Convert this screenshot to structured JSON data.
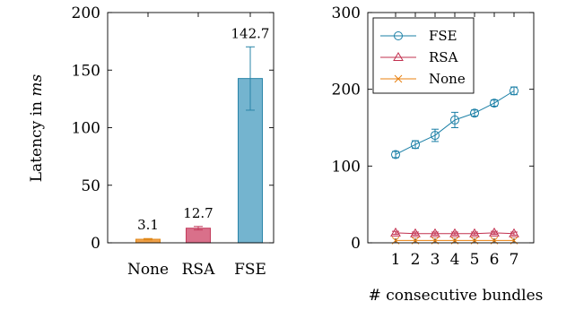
{
  "chart_data": [
    {
      "type": "bar",
      "categories": [
        "None",
        "RSA",
        "FSE"
      ],
      "values": [
        3.1,
        12.7,
        142.7
      ],
      "error": [
        0.6,
        1.5,
        27.5
      ],
      "data_labels": [
        "3.1",
        "12.7",
        "142.7"
      ],
      "colors": [
        "#f0a24a",
        "#d9708a",
        "#74b4cf"
      ],
      "edge_colors": [
        "#e0891c",
        "#c33c5c",
        "#2a84a8"
      ],
      "ylabel": "Latency in ms",
      "ylabel_main": "Latency in ",
      "ylabel_unit": "ms",
      "ylim": [
        0,
        200
      ],
      "yticks": [
        "0",
        "50",
        "100",
        "150",
        "200"
      ]
    },
    {
      "type": "line",
      "x": [
        1,
        2,
        3,
        4,
        5,
        6,
        7
      ],
      "xticks": [
        "1",
        "2",
        "3",
        "4",
        "5",
        "6",
        "7"
      ],
      "xlabel": "# consecutive bundles",
      "ylim": [
        0,
        300
      ],
      "yticks": [
        "0",
        "100",
        "200",
        "300"
      ],
      "legend": "top-left",
      "series": [
        {
          "name": "FSE",
          "values": [
            115,
            128,
            140,
            160,
            169,
            182,
            198
          ],
          "error": [
            4,
            5,
            8,
            10,
            4,
            4,
            5
          ],
          "color": "#1a7fa6",
          "marker": "circle"
        },
        {
          "name": "RSA",
          "values": [
            13,
            12,
            12,
            12,
            12,
            13,
            12
          ],
          "error": [
            2,
            2,
            2,
            2,
            2,
            2,
            2
          ],
          "color": "#c2304f",
          "marker": "triangle"
        },
        {
          "name": "None",
          "values": [
            3,
            3,
            3,
            3,
            3,
            3,
            3
          ],
          "error": [
            0,
            0,
            0,
            0,
            0,
            0,
            0
          ],
          "color": "#e8800f",
          "marker": "cross"
        }
      ]
    }
  ]
}
